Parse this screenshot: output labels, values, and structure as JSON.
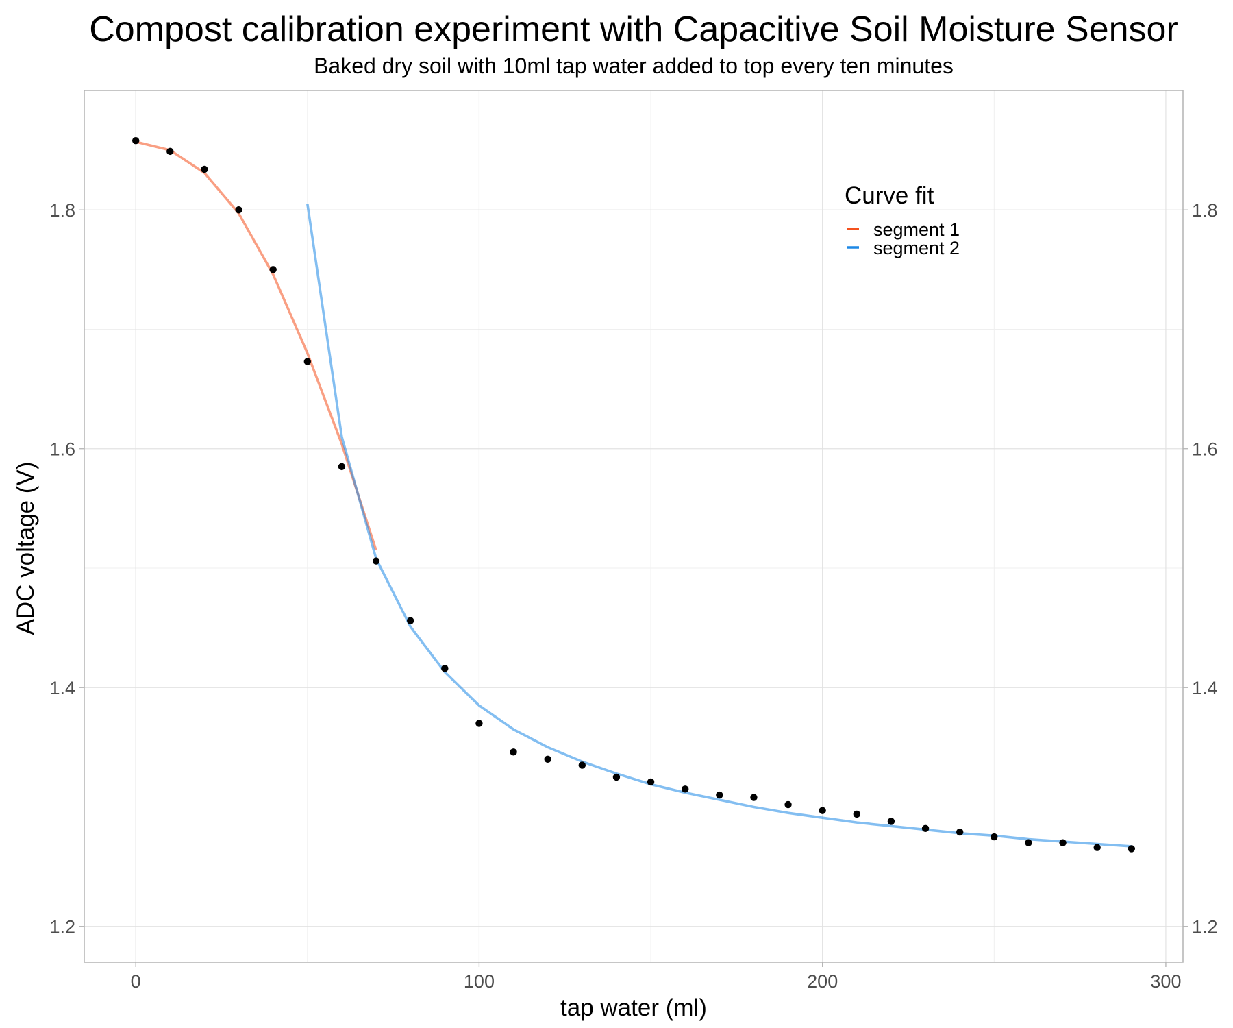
{
  "chart_data": {
    "type": "scatter",
    "title": "Compost calibration experiment with Capacitive Soil Moisture Sensor",
    "subtitle": "Baked dry soil with 10ml tap water added to top every ten minutes",
    "xlabel": "tap water (ml)",
    "ylabel": "ADC voltage (V)",
    "xlim": [
      -15,
      305
    ],
    "ylim": [
      1.17,
      1.9
    ],
    "x_ticks": [
      0,
      100,
      200,
      300
    ],
    "x_tick_labels": [
      "0",
      "100",
      "200",
      "300"
    ],
    "y_ticks": [
      1.2,
      1.4,
      1.6,
      1.8
    ],
    "y_tick_labels": [
      "1.2",
      "1.4",
      "1.6",
      "1.8"
    ],
    "y_axis_secondary": true,
    "grid": true,
    "points": {
      "x": [
        0,
        10,
        20,
        30,
        40,
        50,
        60,
        70,
        80,
        90,
        100,
        110,
        120,
        130,
        140,
        150,
        160,
        170,
        180,
        190,
        200,
        210,
        220,
        230,
        240,
        250,
        260,
        270,
        280,
        290
      ],
      "y": [
        1.858,
        1.849,
        1.834,
        1.8,
        1.75,
        1.673,
        1.585,
        1.506,
        1.456,
        1.416,
        1.37,
        1.346,
        1.34,
        1.335,
        1.325,
        1.321,
        1.315,
        1.31,
        1.308,
        1.302,
        1.297,
        1.294,
        1.288,
        1.282,
        1.279,
        1.275,
        1.27,
        1.27,
        1.266,
        1.265
      ],
      "color": "#000000"
    },
    "legend": {
      "title": "Curve fit",
      "position": "top-right",
      "entries": [
        "segment 1",
        "segment 2"
      ],
      "colors": [
        "#f4511e",
        "#1e88e5"
      ]
    },
    "series": [
      {
        "name": "segment 1",
        "color": "#f4511e",
        "x": [
          0,
          10,
          20,
          30,
          40,
          50,
          60,
          70
        ],
        "y": [
          1.857,
          1.85,
          1.831,
          1.797,
          1.746,
          1.68,
          1.604,
          1.515
        ]
      },
      {
        "name": "segment 2",
        "color": "#1e88e5",
        "x": [
          50,
          60,
          70,
          80,
          90,
          100,
          110,
          120,
          130,
          140,
          150,
          160,
          170,
          180,
          190,
          200,
          210,
          220,
          230,
          240,
          250,
          260,
          270,
          280,
          290
        ],
        "y": [
          1.805,
          1.61,
          1.508,
          1.451,
          1.413,
          1.385,
          1.365,
          1.35,
          1.338,
          1.328,
          1.319,
          1.312,
          1.306,
          1.3,
          1.295,
          1.291,
          1.287,
          1.284,
          1.281,
          1.278,
          1.276,
          1.273,
          1.271,
          1.269,
          1.267
        ]
      }
    ]
  }
}
